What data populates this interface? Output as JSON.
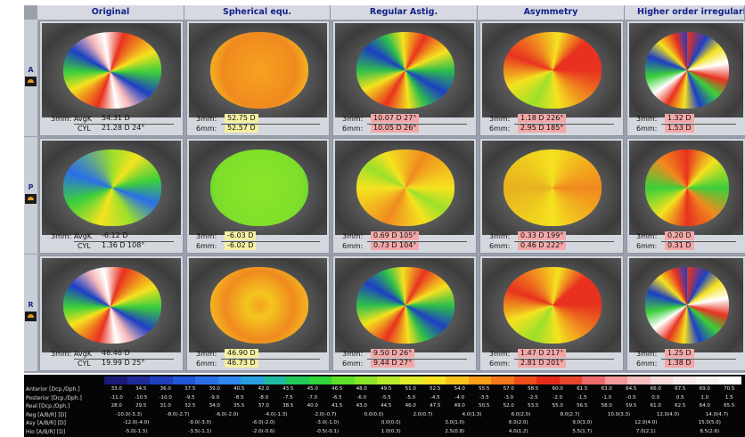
{
  "headers": [
    "Original",
    "Spherical equ.",
    "Regular Astig.",
    "Asymmetry",
    "Higher order irregularity"
  ],
  "rows": [
    {
      "letter": "A",
      "icon": "eye-icon",
      "original": {
        "l1": "3mm: AvgK",
        "v1": "54.31 D",
        "l2": "CYL",
        "v2": "21.28 D 24°"
      },
      "spherical": {
        "l1": "3mm:",
        "v1": "52.75 D",
        "l2": "6mm:",
        "v2": "52.57 D"
      },
      "regular": {
        "l1": "3mm:",
        "v1": "10.07 D 27°",
        "l2": "6mm:",
        "v2": "10.05 D 26°"
      },
      "asymmetry": {
        "l1": "3mm:",
        "v1": "1.18 D 226°",
        "l2": "6mm:",
        "v2": "2.95 D 185°"
      },
      "higher": {
        "l1": "3mm:",
        "v1": "1.32 D",
        "l2": "6mm:",
        "v2": "1.53 D"
      }
    },
    {
      "letter": "P",
      "icon": "eye-icon",
      "original": {
        "l1": "3mm: AvgK",
        "v1": "-6.12 D",
        "l2": "CYL",
        "v2": "1.36 D 108°"
      },
      "spherical": {
        "l1": "3mm:",
        "v1": "-6.03 D",
        "l2": "6mm:",
        "v2": "-6.02 D"
      },
      "regular": {
        "l1": "3mm:",
        "v1": "0.69 D 105°",
        "l2": "6mm:",
        "v2": "0.73 D 104°"
      },
      "asymmetry": {
        "l1": "3mm:",
        "v1": "0.33 D 199°",
        "l2": "6mm:",
        "v2": "0.46 D 222°"
      },
      "higher": {
        "l1": "3mm:",
        "v1": "0.20 D",
        "l2": "6mm:",
        "v2": "0.31 D"
      }
    },
    {
      "letter": "R",
      "icon": "eye-icon",
      "original": {
        "l1": "3mm: AvgK",
        "v1": "48.46 D",
        "l2": "CYL",
        "v2": "19.99 D 25°"
      },
      "spherical": {
        "l1": "3mm:",
        "v1": "46.90 D",
        "l2": "6mm:",
        "v2": "46.73 D"
      },
      "regular": {
        "l1": "3mm:",
        "v1": "9.50 D 26°",
        "l2": "6mm:",
        "v2": "9.44 D 27°"
      },
      "asymmetry": {
        "l1": "3mm:",
        "v1": "1.47 D 217°",
        "l2": "6mm:",
        "v2": "2.81 D 201°"
      },
      "higher": {
        "l1": "3mm:",
        "v1": "1.25 D",
        "l2": "6mm:",
        "v2": "1.38 D"
      }
    }
  ],
  "scale": {
    "colors": [
      "#1a1a7a",
      "#1e2a9a",
      "#1f3fbf",
      "#2255d8",
      "#2a6ee8",
      "#2e86f0",
      "#27a0e0",
      "#1fb8a0",
      "#22c85a",
      "#2fd43a",
      "#5ee02a",
      "#8be62a",
      "#b8ea2a",
      "#e0ea2a",
      "#f6e21f",
      "#fac21c",
      "#f99d1a",
      "#f5781a",
      "#ee4f1a",
      "#e62a1c",
      "#e8452e",
      "#ec6a6a",
      "#f39a9a",
      "#f7c0c0",
      "#fadcdc",
      "#fbeaea",
      "#fcf2f2",
      "#ffffff"
    ],
    "rows": [
      {
        "label": "Anterior [Dcp./Dph.]",
        "ticks": [
          "33.0",
          "34.5",
          "36.0",
          "37.5",
          "39.0",
          "40.5",
          "42.0",
          "43.5",
          "45.0",
          "46.5",
          "48.0",
          "49.5",
          "51.0",
          "52.5",
          "54.0",
          "55.5",
          "57.0",
          "58.5",
          "60.0",
          "61.5",
          "63.0",
          "64.5",
          "66.0",
          "67.5",
          "69.0",
          "70.5"
        ]
      },
      {
        "label": "Posterior [Dcp./Dph.]",
        "ticks": [
          "-11.0",
          "-10.5",
          "-10.0",
          "-9.5",
          "-9.0",
          "-8.5",
          "-8.0",
          "-7.5",
          "-7.0",
          "-6.5",
          "-6.0",
          "-5.5",
          "-5.0",
          "-4.5",
          "-4.0",
          "-3.5",
          "-3.0",
          "-2.5",
          "-2.0",
          "-1.5",
          "-1.0",
          "-0.5",
          "0.0",
          "0.5",
          "1.0",
          "1.5"
        ]
      },
      {
        "label": "Real [Dcp./Dph.]",
        "ticks": [
          "28.0",
          "29.5",
          "31.0",
          "32.5",
          "34.0",
          "35.5",
          "37.0",
          "38.5",
          "40.0",
          "41.5",
          "43.0",
          "44.5",
          "46.0",
          "47.5",
          "49.0",
          "50.5",
          "52.0",
          "53.5",
          "55.0",
          "56.5",
          "58.0",
          "59.5",
          "61.0",
          "62.5",
          "64.0",
          "65.5"
        ]
      },
      {
        "label": "Reg [A/B/R] [D]",
        "ticks": [
          "-10.0(-3.3)",
          "-8.0(-2.7)",
          "-6.0(-2.0)",
          "-4.0(-1.3)",
          "-2.0(-0.7)",
          "0.0(0.0)",
          "2.0(0.7)",
          "4.0(1.3)",
          "6.0(2.0)",
          "8.0(2.7)",
          "10.0(3.3)",
          "12.0(4.0)",
          "14.0(4.7)"
        ]
      },
      {
        "label": "Asy [A/B/R] [D]",
        "ticks": [
          "-12.0(-4.0)",
          "-9.0(-3.0)",
          "-6.0(-2.0)",
          "-3.0(-1.0)",
          "0.0(0.0)",
          "3.0(1.0)",
          "6.0(2.0)",
          "9.0(3.0)",
          "12.0(4.0)",
          "15.0(5.0)"
        ]
      },
      {
        "label": "Hio [A/B/R] [D]",
        "ticks": [
          "-5.0(-1.5)",
          "-3.5(-1.1)",
          "-2.0(-0.6)",
          "-0.5(-0.1)",
          "1.0(0.3)",
          "2.5(0.8)",
          "4.0(1.2)",
          "5.5(1.7)",
          "7.0(2.1)",
          "8.5(2.6)"
        ]
      }
    ]
  }
}
